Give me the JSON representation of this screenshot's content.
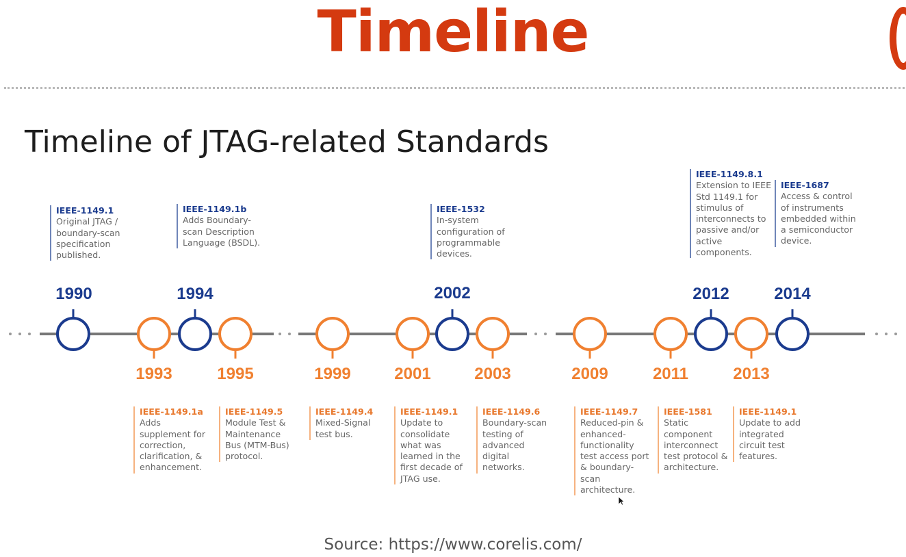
{
  "title": "Timeline",
  "subtitle": "Timeline of JTAG-related Standards",
  "source": "Source: https://www.corelis.com/",
  "colors": {
    "title": "#d43a10",
    "blue": "#1b3b8e",
    "orange": "#f08030",
    "line": "#777777"
  },
  "events": [
    {
      "year": "1990",
      "standard": "IEEE-1149.1",
      "description": "Original JTAG / boundary-scan specification published.",
      "kind": "blue"
    },
    {
      "year": "1993",
      "standard": "IEEE-1149.1a",
      "description": "Adds supplement for correction, clarification, & enhancement.",
      "kind": "orange"
    },
    {
      "year": "1994",
      "standard": "IEEE-1149.1b",
      "description": "Adds Boundary-scan Description Language (BSDL).",
      "kind": "blue"
    },
    {
      "year": "1995",
      "standard": "IEEE-1149.5",
      "description": "Module Test & Maintenance Bus (MTM-Bus) protocol.",
      "kind": "orange"
    },
    {
      "year": "1999",
      "standard": "IEEE-1149.4",
      "description": "Mixed-Signal test bus.",
      "kind": "orange"
    },
    {
      "year": "2001",
      "standard": "IEEE-1149.1",
      "description": "Update to consolidate what was learned in the first decade of JTAG use.",
      "kind": "orange"
    },
    {
      "year": "2002",
      "standard": "IEEE-1532",
      "description": "In-system configuration of programmable devices.",
      "kind": "blue"
    },
    {
      "year": "2003",
      "standard": "IEEE-1149.6",
      "description": "Boundary-scan testing of advanced digital networks.",
      "kind": "orange"
    },
    {
      "year": "2009",
      "standard": "IEEE-1149.7",
      "description": "Reduced-pin & enhanced-functionality test access port & boundary-scan architecture.",
      "kind": "orange"
    },
    {
      "year": "2011",
      "standard": "IEEE-1581",
      "description": "Static component interconnect test protocol & architecture.",
      "kind": "orange"
    },
    {
      "year": "2012",
      "standard": "IEEE-1149.8.1",
      "description": "Extension to IEEE Std 1149.1 for stimulus of interconnects to passive and/or active components.",
      "kind": "blue"
    },
    {
      "year": "2013",
      "standard": "IEEE-1149.1",
      "description": "Update to add integrated circuit test features.",
      "kind": "orange"
    },
    {
      "year": "2014",
      "standard": "IEEE-1687",
      "description": "Access & control of instruments embedded within a semiconductor device.",
      "kind": "blue"
    }
  ]
}
